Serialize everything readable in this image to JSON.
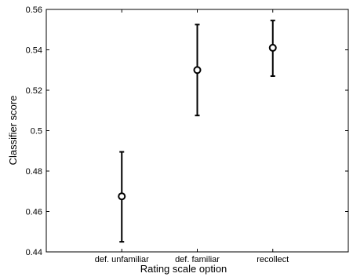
{
  "chart_data": {
    "type": "scatter",
    "title": "",
    "xlabel": "Rating scale option",
    "ylabel": "Classifier score",
    "categories": [
      "def. unfamiliar",
      "def. familiar",
      "recollect"
    ],
    "series": [
      {
        "values": [
          0.4675,
          0.53,
          0.541
        ],
        "error_low": [
          0.445,
          0.5075,
          0.527
        ],
        "error_high": [
          0.4895,
          0.5525,
          0.5545
        ]
      }
    ],
    "ylim": [
      0.44,
      0.56
    ],
    "yticks": [
      "0.44",
      "0.46",
      "0.48",
      "0.5",
      "0.52",
      "0.54",
      "0.56"
    ],
    "grid": false,
    "legend": "none",
    "colors": {
      "line": "#000000",
      "background": "#ffffff"
    }
  }
}
